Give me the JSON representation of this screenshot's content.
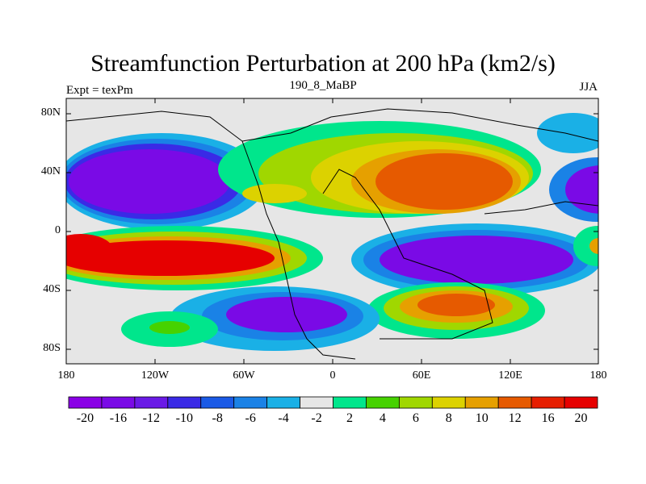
{
  "header": {
    "title": "Streamfunction Perturbation at 200 hPa (km2/s)",
    "left": "Expt = texPm",
    "center": "190_8_MaBP",
    "right": "JJA"
  },
  "map": {
    "lat_ticks": [
      "80N",
      "40N",
      "0",
      "40S",
      "80S"
    ],
    "lon_ticks": [
      "180",
      "120W",
      "60W",
      "0",
      "60E",
      "120E",
      "180"
    ],
    "background": "#e6e6e6"
  },
  "colorbar": {
    "colors": [
      "#8a00e6",
      "#7a0ae6",
      "#6a1ae6",
      "#3a2ae6",
      "#1a5ae6",
      "#1a82e6",
      "#1ab0e6",
      "#e6e6e6",
      "#00e68c",
      "#46d200",
      "#a0d700",
      "#dcd200",
      "#e6a000",
      "#e65a00",
      "#e61e00",
      "#e60000"
    ],
    "labels": [
      "-20",
      "-16",
      "-12",
      "-10",
      "-8",
      "-6",
      "-4",
      "-2",
      "2",
      "4",
      "6",
      "8",
      "10",
      "12",
      "16",
      "20"
    ]
  }
}
